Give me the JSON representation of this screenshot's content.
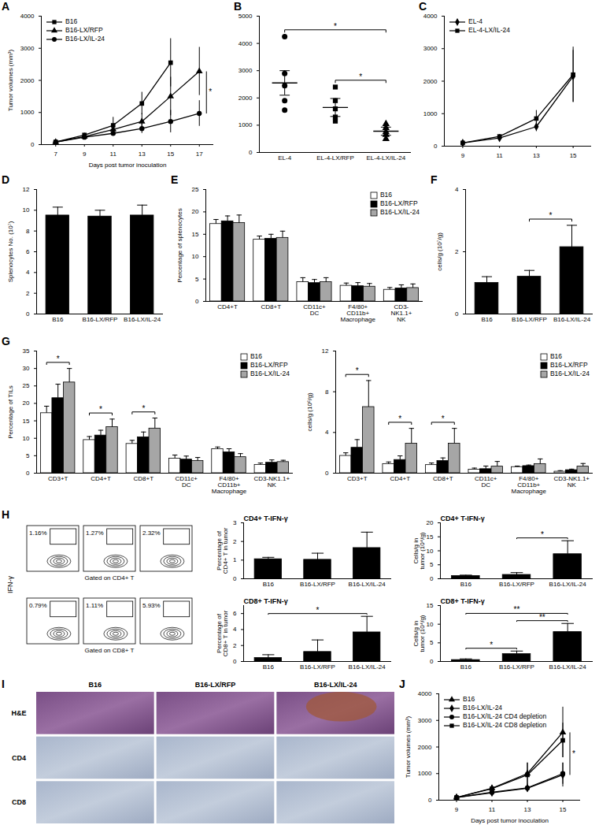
{
  "chart_data": [
    {
      "panel": "A",
      "type": "line",
      "x": [
        7,
        9,
        11,
        13,
        15,
        17
      ],
      "xlim": [
        6,
        18
      ],
      "xticks": [
        7,
        9,
        11,
        13,
        15,
        17
      ],
      "ylim": [
        0,
        4000
      ],
      "yticks": [
        0,
        1000,
        2000,
        3000,
        4000
      ],
      "x_label": "Days post tumor inoculation",
      "y_label": "Tumor volumes (mm³)",
      "legend": "upper left",
      "series": [
        {
          "name": "B16",
          "color": "#000000",
          "marker": "square",
          "values": [
            80,
            300,
            600,
            1280,
            2550,
            null
          ],
          "errors": [
            20,
            50,
            250,
            350,
            750,
            null
          ]
        },
        {
          "name": "B16-LX/RFP",
          "color": "#000000",
          "marker": "triangle",
          "values": [
            80,
            250,
            470,
            720,
            1500,
            2280
          ],
          "errors": [
            20,
            50,
            150,
            250,
            600,
            750
          ]
        },
        {
          "name": "B16-LX/IL-24",
          "color": "#000000",
          "marker": "circle",
          "values": [
            80,
            230,
            350,
            500,
            720,
            970
          ],
          "errors": [
            10,
            40,
            70,
            150,
            350,
            400
          ]
        }
      ],
      "annotations": [
        {
          "text": "*",
          "between": [
            "B16-LX/RFP",
            "B16-LX/IL-24"
          ]
        }
      ]
    },
    {
      "panel": "B",
      "type": "scatter",
      "categories": [
        "EL-4",
        "EL-4-LX/RFP",
        "EL-4-LX/IL-24"
      ],
      "markers": [
        "circle",
        "square",
        "triangle"
      ],
      "color": "#000000",
      "values": [
        [
          4250,
          2900,
          2450,
          1900,
          1550
        ],
        [
          2400,
          1900,
          1600,
          1300,
          1150
        ],
        [
          1050,
          900,
          750,
          650,
          500
        ]
      ],
      "means": [
        2550,
        1650,
        780
      ],
      "errors": [
        450,
        330,
        150
      ],
      "ylim": [
        0,
        5000
      ],
      "yticks": [
        0,
        1000,
        2000,
        3000,
        4000,
        5000
      ],
      "annotations": [
        {
          "text": "*",
          "between": [
            "EL-4-LX/RFP",
            "EL-4-LX/IL-24"
          ]
        },
        {
          "text": "*",
          "between": [
            "EL-4",
            "EL-4-LX/IL-24"
          ]
        }
      ]
    },
    {
      "panel": "C",
      "type": "line",
      "x": [
        9,
        11,
        13,
        15
      ],
      "xlim": [
        8,
        16
      ],
      "xticks": [
        9,
        11,
        13,
        15
      ],
      "ylim": [
        0,
        4000
      ],
      "yticks": [
        0,
        1000,
        2000,
        3000,
        4000
      ],
      "legend": "upper left",
      "series": [
        {
          "name": "EL-4",
          "color": "#000000",
          "marker": "diamond",
          "values": [
            100,
            250,
            600,
            2150
          ],
          "errors": [
            20,
            50,
            150,
            800
          ]
        },
        {
          "name": "EL-4-LX/IL-24",
          "color": "#000000",
          "marker": "square",
          "values": [
            100,
            300,
            850,
            2200
          ],
          "errors": [
            20,
            60,
            250,
            850
          ]
        }
      ]
    },
    {
      "panel": "D",
      "type": "bar",
      "categories": [
        "B16",
        "B16-LX/RFP",
        "B16-LX/IL-24"
      ],
      "color": "#000000",
      "values": [
        9.5,
        9.4,
        9.5
      ],
      "errors": [
        0.8,
        0.6,
        1.0
      ],
      "ylim": [
        0,
        12
      ],
      "yticks": [
        0,
        2,
        4,
        6,
        8,
        10,
        12
      ],
      "y_label": "Splenocytes No. (10⁷)"
    },
    {
      "panel": "E",
      "type": "bar",
      "categories": [
        "CD4+T",
        "CD8+T",
        "CD11c+ DC",
        "F4/80+ CD11b+ Macrophage",
        "CD3- NK1.1+ NK"
      ],
      "ylim": [
        0,
        25
      ],
      "yticks": [
        0,
        5,
        10,
        15,
        20,
        25
      ],
      "y_label": "Percentage of splenocytes",
      "legend": "upper right",
      "series": [
        {
          "name": "B16",
          "color": "#ffffff",
          "values": [
            17.3,
            13.8,
            4.3,
            3.5,
            2.6
          ],
          "errors": [
            1.0,
            0.8,
            1.0,
            0.6,
            0.5
          ]
        },
        {
          "name": "B16-LX/RFP",
          "color": "#000000",
          "values": [
            17.9,
            14.0,
            4.1,
            3.4,
            2.9
          ],
          "errors": [
            1.2,
            1.0,
            0.8,
            0.8,
            0.8
          ]
        },
        {
          "name": "B16-LX/IL-24",
          "color": "#a6a6a6",
          "values": [
            17.5,
            14.2,
            4.3,
            3.3,
            3.0
          ],
          "errors": [
            1.8,
            1.5,
            1.0,
            0.7,
            0.9
          ]
        }
      ]
    },
    {
      "panel": "F",
      "type": "bar",
      "categories": [
        "B16",
        "B16-LX/RFP",
        "B16-LX/IL-24"
      ],
      "color": "#000000",
      "values": [
        1.0,
        1.2,
        2.15
      ],
      "errors": [
        0.2,
        0.2,
        0.7
      ],
      "ylim": [
        0,
        4
      ],
      "yticks": [
        0,
        2,
        4
      ],
      "y_label": "cells/g (10⁷/g)",
      "annotations": [
        {
          "text": "*",
          "between": [
            "B16-LX/RFP",
            "B16-LX/IL-24"
          ]
        }
      ]
    },
    {
      "panel": "G",
      "type": "bar",
      "categories": [
        "CD3+T",
        "CD4+T",
        "CD8+T",
        "CD11c+ DC",
        "F4/80+ CD11b+ Macrophage",
        "CD3-NK1.1+ NK"
      ],
      "ylim": [
        0,
        35
      ],
      "yticks": [
        0,
        5,
        10,
        15,
        20,
        25,
        30,
        35
      ],
      "y_label": "Percentage of TILs",
      "legend": "upper right",
      "series": [
        {
          "name": "B16",
          "color": "#ffffff",
          "values": [
            17.2,
            9.5,
            8.4,
            4.2,
            6.9,
            2.4
          ],
          "errors": [
            2.0,
            1.0,
            1.0,
            1.0,
            0.6,
            0.5
          ]
        },
        {
          "name": "B16-LX/RFP",
          "color": "#000000",
          "values": [
            21.5,
            10.8,
            10.3,
            3.9,
            6.0,
            3.0
          ],
          "errors": [
            4.0,
            1.5,
            1.5,
            1.0,
            1.0,
            0.8
          ]
        },
        {
          "name": "B16-LX/IL-24",
          "color": "#a6a6a6",
          "values": [
            26.0,
            13.2,
            12.8,
            3.5,
            4.6,
            3.2
          ],
          "errors": [
            4.0,
            2.3,
            3.0,
            1.0,
            1.0,
            0.5
          ]
        }
      ],
      "annotations": [
        {
          "text": "*",
          "category": "CD3+T",
          "between": [
            "B16",
            "B16-LX/IL-24"
          ]
        },
        {
          "text": "*",
          "category": "CD4+T",
          "between": [
            "B16",
            "B16-LX/IL-24"
          ]
        },
        {
          "text": "*",
          "category": "CD8+T",
          "between": [
            "B16",
            "B16-LX/IL-24"
          ]
        }
      ]
    },
    {
      "type": "bar",
      "categories": [
        "CD3+T",
        "CD4+T",
        "CD8+T",
        "CD11c+ DC",
        "F4/80+ CD11b+ Macrophage",
        "CD3-NK1.1+ NK"
      ],
      "ylim": [
        0,
        12
      ],
      "yticks": [
        0,
        4,
        8,
        12
      ],
      "y_label": "cells/g (10⁶/g)",
      "legend": "upper right",
      "series": [
        {
          "name": "B16",
          "color": "#ffffff",
          "values": [
            1.7,
            0.9,
            0.8,
            0.35,
            0.6,
            0.15
          ],
          "errors": [
            0.3,
            0.2,
            0.2,
            0.15,
            0.1,
            0.1
          ]
        },
        {
          "name": "B16-LX/RFP",
          "color": "#000000",
          "values": [
            2.5,
            1.3,
            1.2,
            0.4,
            0.7,
            0.3
          ],
          "errors": [
            0.8,
            0.4,
            0.3,
            0.3,
            0.1,
            0.1
          ]
        },
        {
          "name": "B16-LX/IL-24",
          "color": "#a6a6a6",
          "values": [
            6.5,
            2.9,
            2.9,
            0.65,
            0.9,
            0.65
          ],
          "errors": [
            2.6,
            1.5,
            1.5,
            0.5,
            0.5,
            0.3
          ]
        }
      ],
      "annotations": [
        {
          "text": "*",
          "category": "CD3+T",
          "between": [
            "B16",
            "B16-LX/IL-24"
          ]
        },
        {
          "text": "*",
          "category": "CD4+T",
          "between": [
            "B16",
            "B16-LX/IL-24"
          ]
        },
        {
          "text": "*",
          "category": "CD8+T",
          "between": [
            "B16",
            "B16-LX/IL-24"
          ]
        }
      ]
    },
    {
      "type": "bar",
      "title": "CD4+ T-IFN-γ",
      "categories": [
        "B16",
        "B16-LX/RFP",
        "B16-LX/IL-24"
      ],
      "color": "#000000",
      "values": [
        1.05,
        1.02,
        1.65
      ],
      "errors": [
        0.1,
        0.35,
        0.85
      ],
      "ylim": [
        0,
        3
      ],
      "yticks": [
        0,
        1,
        2,
        3
      ],
      "y_label": "Percentage of CD4+ T in tumor"
    },
    {
      "type": "bar",
      "title": "CD4+ T-IFN-γ",
      "categories": [
        "B16",
        "B16-LX/RFP",
        "B16-LX/IL-24"
      ],
      "color": "#000000",
      "values": [
        1.0,
        1.4,
        8.8
      ],
      "errors": [
        0.3,
        0.8,
        4.8
      ],
      "ylim": [
        0,
        20
      ],
      "yticks": [
        0,
        5,
        10,
        15,
        20
      ],
      "y_label": "Cells/g in tumor (10⁴/g)",
      "annotations": [
        {
          "text": "*",
          "between": [
            "B16-LX/RFP",
            "B16-LX/IL-24"
          ]
        }
      ]
    },
    {
      "type": "bar",
      "title": "CD8+ T-IFN-γ",
      "categories": [
        "B16",
        "B16-LX/RFP",
        "B16-LX/IL-24"
      ],
      "color": "#000000",
      "values": [
        0.45,
        1.2,
        3.65
      ],
      "errors": [
        0.4,
        1.5,
        2.0
      ],
      "ylim": [
        0,
        7
      ],
      "yticks": [
        0,
        2,
        4,
        6
      ],
      "y_label": "Percentage of CD8+ T in tumor",
      "annotations": [
        {
          "text": "*",
          "between": [
            "B16",
            "B16-LX/IL-24"
          ]
        }
      ]
    },
    {
      "type": "bar",
      "title": "CD8+ T-IFN-γ",
      "categories": [
        "B16",
        "B16-LX/RFP",
        "B16-LX/IL-24"
      ],
      "color": "#000000",
      "values": [
        0.4,
        2.0,
        7.9
      ],
      "errors": [
        0.3,
        0.8,
        2.3
      ],
      "ylim": [
        0,
        15
      ],
      "yticks": [
        0,
        5,
        10,
        15
      ],
      "y_label": "Cells/g in tumor (10⁴/g)",
      "annotations": [
        {
          "text": "*",
          "between": [
            "B16",
            "B16-LX/RFP"
          ]
        },
        {
          "text": "**",
          "between": [
            "B16-LX/RFP",
            "B16-LX/IL-24"
          ]
        },
        {
          "text": "**",
          "between": [
            "B16",
            "B16-LX/IL-24"
          ]
        }
      ]
    },
    {
      "panel": "J",
      "type": "line",
      "x": [
        9,
        11,
        13,
        15
      ],
      "xlim": [
        8,
        16
      ],
      "xticks": [
        9,
        11,
        13,
        15
      ],
      "ylim": [
        0,
        4000
      ],
      "yticks": [
        0,
        1000,
        2000,
        3000,
        4000
      ],
      "x_label": "Days post tumor inoculation",
      "y_label": "Tumor volumes (mm³)",
      "legend": "upper left",
      "series": [
        {
          "name": "B16",
          "color": "#000000",
          "marker": "triangle",
          "values": [
            100,
            450,
            1000,
            2550
          ],
          "errors": [
            20,
            100,
            400,
            950
          ]
        },
        {
          "name": "B16-LX/IL-24",
          "color": "#000000",
          "marker": "diamond",
          "values": [
            100,
            280,
            450,
            950
          ],
          "errors": [
            20,
            60,
            120,
            450
          ]
        },
        {
          "name": "B16-LX/IL-24 CD4 depletion",
          "color": "#000000",
          "marker": "circle",
          "values": [
            100,
            300,
            460,
            1000
          ],
          "errors": [
            20,
            80,
            150,
            400
          ]
        },
        {
          "name": "B16-LX/IL-24 CD8 depletion",
          "color": "#000000",
          "marker": "square",
          "values": [
            100,
            430,
            950,
            2250
          ],
          "errors": [
            20,
            120,
            450,
            650
          ]
        }
      ],
      "annotations": [
        {
          "text": "*",
          "between": [
            "B16",
            "B16-LX/IL-24"
          ]
        }
      ]
    }
  ],
  "flow_plots": {
    "panel": "H",
    "y_label": "IFN-γ",
    "rows": [
      {
        "gate_label": "Gated on CD4+ T",
        "percents": [
          "1.16%",
          "1.27%",
          "2.32%"
        ]
      },
      {
        "gate_label": "Gated on CD8+ T",
        "percents": [
          "0.79%",
          "1.11%",
          "5.93%"
        ]
      }
    ]
  },
  "image_grid": {
    "panel": "I",
    "columns": [
      "B16",
      "B16-LX/RFP",
      "B16-LX/IL-24"
    ],
    "rows": [
      "H&E",
      "CD4",
      "CD8"
    ]
  }
}
